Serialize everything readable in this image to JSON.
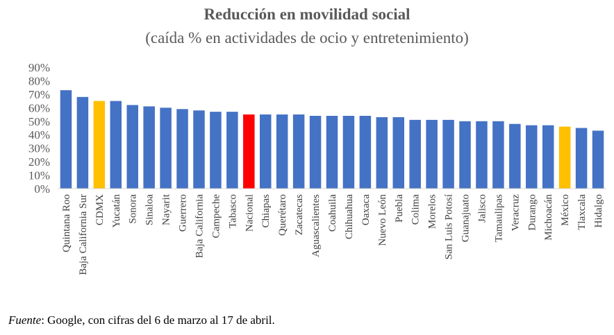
{
  "chart_data": {
    "type": "bar",
    "title": "Reducción en movilidad social",
    "subtitle": "(caída % en actividades de ocio y entretenimiento)",
    "categories": [
      "Quintana Roo",
      "Baja California Sur",
      "CDMX",
      "Yucatán",
      "Sonora",
      "Sinaloa",
      "Nayarit",
      "Guerrero",
      "Baja California",
      "Campeche",
      "Tabasco",
      "Nacional",
      "Chiapas",
      "Querétaro",
      "Zacatecas",
      "Aguascalientes",
      "Coahuila",
      "Chihuahua",
      "Oaxaca",
      "Nuevo León",
      "Puebla",
      "Colima",
      "Morelos",
      "San Luis Potosí",
      "Guanajuato",
      "Jalisco",
      "Tamaulipas",
      "Veracruz",
      "Durango",
      "Michoacán",
      "México",
      "Tlaxcala",
      "Hidalgo"
    ],
    "values": [
      73,
      68,
      65,
      65,
      62,
      61,
      60,
      59,
      58,
      57,
      57,
      55,
      55,
      55,
      55,
      54,
      54,
      54,
      54,
      53,
      53,
      51,
      51,
      51,
      50,
      50,
      50,
      48,
      47,
      47,
      46,
      45,
      43
    ],
    "colors": [
      "#4472C4",
      "#4472C4",
      "#FFC000",
      "#4472C4",
      "#4472C4",
      "#4472C4",
      "#4472C4",
      "#4472C4",
      "#4472C4",
      "#4472C4",
      "#4472C4",
      "#FF0000",
      "#4472C4",
      "#4472C4",
      "#4472C4",
      "#4472C4",
      "#4472C4",
      "#4472C4",
      "#4472C4",
      "#4472C4",
      "#4472C4",
      "#4472C4",
      "#4472C4",
      "#4472C4",
      "#4472C4",
      "#4472C4",
      "#4472C4",
      "#4472C4",
      "#4472C4",
      "#4472C4",
      "#FFC000",
      "#4472C4",
      "#4472C4"
    ],
    "yticks": [
      "0%",
      "10%",
      "20%",
      "30%",
      "40%",
      "50%",
      "60%",
      "70%",
      "80%",
      "90%"
    ],
    "ylim": [
      0,
      90
    ],
    "grid": false,
    "legend": "none"
  },
  "footer": {
    "source_label": "Fuente",
    "source_text": ": Google, con cifras del 6 de marzo al 17 de abril."
  }
}
